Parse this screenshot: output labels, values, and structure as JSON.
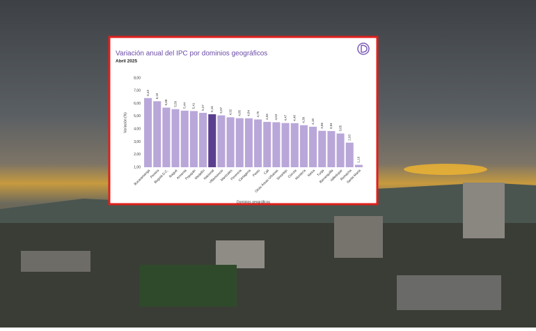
{
  "chart_data": {
    "type": "bar",
    "title": "Variación anual del IPC por dominios geográficos",
    "subtitle": "Abril 2025",
    "x_label": "Dominios geográficos",
    "y_label": "Variación (%)",
    "categories": [
      "Bucaramanga",
      "Pereira",
      "Bogotá D.C.",
      "Ibagué",
      "Armenia",
      "Popayán",
      "Medellín",
      "Nacional",
      "Villavicencio",
      "Manizales",
      "Florencia",
      "Cartagena",
      "Pasto",
      "Cali",
      "Otras Áreas Urbanas",
      "Sincelejo",
      "Cúcuta",
      "Montería",
      "Neiva",
      "Tunja",
      "Barranquilla",
      "Valledupar",
      "Riohacha",
      "Santa Marta"
    ],
    "values": [
      6.43,
      6.18,
      5.68,
      5.56,
      5.44,
      5.41,
      5.27,
      5.16,
      5.07,
      4.92,
      4.85,
      4.84,
      4.75,
      4.56,
      4.53,
      4.47,
      4.46,
      4.3,
      4.18,
      3.86,
      3.84,
      3.65,
      2.93,
      1.19
    ],
    "value_labels": [
      "6,43",
      "6,18",
      "5,68",
      "5,56",
      "5,44",
      "5,41",
      "5,27",
      "5,16",
      "5,07",
      "4,92",
      "4,85",
      "4,84",
      "4,75",
      "4,56",
      "4,53",
      "4,47",
      "4,46",
      "4,30",
      "4,18",
      "3,86",
      "3,84",
      "3,65",
      "2,93",
      "1,19"
    ],
    "colors": [
      "#b9a7d9",
      "#b9a7d9",
      "#b9a7d9",
      "#b9a7d9",
      "#b9a7d9",
      "#b9a7d9",
      "#b9a7d9",
      "#5a3f8e",
      "#b9a7d9",
      "#b9a7d9",
      "#b9a7d9",
      "#b9a7d9",
      "#b9a7d9",
      "#b9a7d9",
      "#b9a7d9",
      "#b9a7d9",
      "#b9a7d9",
      "#b9a7d9",
      "#b9a7d9",
      "#b9a7d9",
      "#b9a7d9",
      "#b9a7d9",
      "#b9a7d9",
      "#b9a7d9"
    ],
    "ylim": [
      1,
      8
    ],
    "yticks": [
      {
        "value": 1,
        "label": "1,00"
      },
      {
        "value": 2,
        "label": "2,00"
      },
      {
        "value": 3,
        "label": "3,00"
      },
      {
        "value": 4,
        "label": "4,00"
      },
      {
        "value": 5,
        "label": "5,00"
      },
      {
        "value": 6,
        "label": "6,00"
      },
      {
        "value": 7,
        "label": "7,00"
      },
      {
        "value": 8,
        "label": "8,00"
      }
    ],
    "grid": false
  }
}
